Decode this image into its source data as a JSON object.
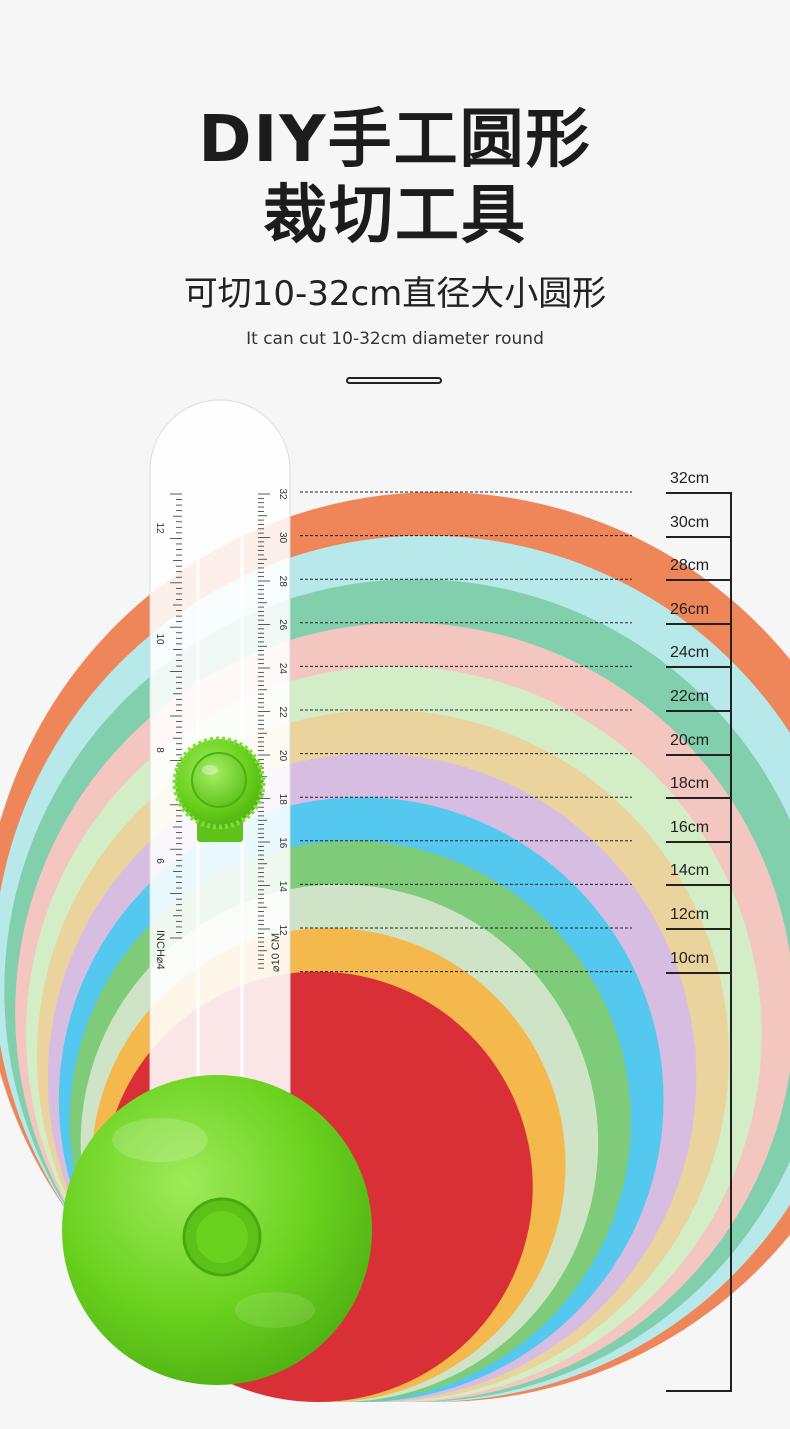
{
  "header": {
    "title_line1": "DIY手工圆形",
    "title_line2": "裁切工具",
    "subtitle": "可切10-32cm直径大小圆形",
    "english_subtitle": "It can cut 10-32cm diameter round"
  },
  "paper_discs": [
    {
      "diameter_label": "32cm",
      "color": "#ef865a"
    },
    {
      "diameter_label": "30cm",
      "color": "#b8e9ea"
    },
    {
      "diameter_label": "28cm",
      "color": "#82cfae"
    },
    {
      "diameter_label": "26cm",
      "color": "#f4c6c0"
    },
    {
      "diameter_label": "24cm",
      "color": "#d3edc7"
    },
    {
      "diameter_label": "22cm",
      "color": "#ead39c"
    },
    {
      "diameter_label": "20cm",
      "color": "#d7bde2"
    },
    {
      "diameter_label": "18cm",
      "color": "#55c8ef"
    },
    {
      "diameter_label": "16cm",
      "color": "#7ecb7a"
    },
    {
      "diameter_label": "14cm",
      "color": "#cfe3c6"
    },
    {
      "diameter_label": "12cm",
      "color": "#f4b84c"
    },
    {
      "diameter_label": "10cm",
      "color": "#d93038"
    }
  ],
  "ruler": {
    "cm_marks": [
      "32",
      "30",
      "28",
      "26",
      "24",
      "22",
      "20",
      "18",
      "16",
      "14",
      "12"
    ],
    "cm_end_label": "⌀10 CM",
    "inch_marks": [
      "12",
      "10",
      "8",
      "6"
    ],
    "inch_end_label": "INCH⌀4",
    "accent_color": "#6ad11e"
  }
}
